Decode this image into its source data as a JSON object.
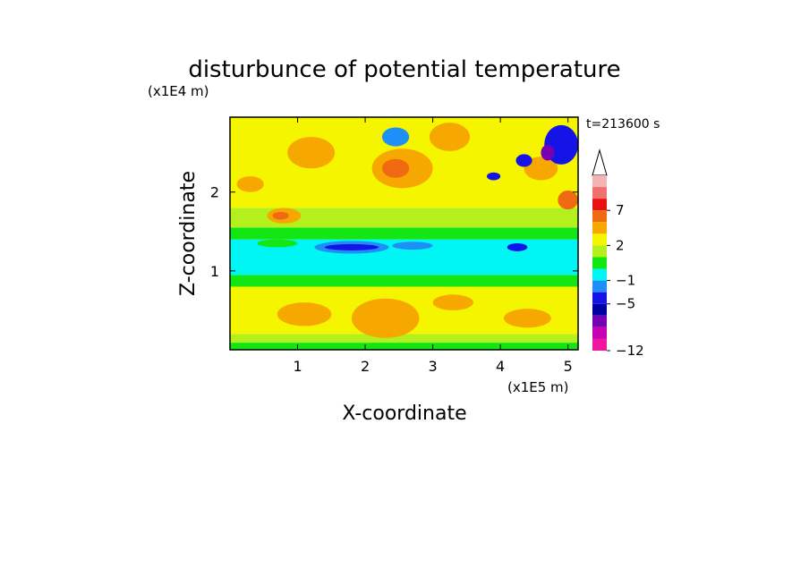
{
  "chart_data": {
    "type": "heatmap",
    "title": "disturbunce of potential temperature",
    "y_scale_label": "(x1E4 m)",
    "x_scale_label": "(x1E5 m)",
    "xlabel": "X-coordinate",
    "ylabel": "Z-coordinate",
    "time_label": "t=213600 s",
    "xlim": [
      0,
      5.15
    ],
    "ylim": [
      0,
      2.95
    ],
    "x_ticks": [
      1,
      2,
      3,
      4,
      5
    ],
    "y_ticks": [
      1,
      2
    ],
    "colorbar": {
      "labels": [
        "7",
        "2",
        "−1",
        "−5",
        "−12"
      ],
      "colors": [
        "#f5b4b4",
        "#f07070",
        "#e81010",
        "#f06a14",
        "#f7a800",
        "#f5f500",
        "#b4f01e",
        "#14e614",
        "#00f5f5",
        "#1e90f5",
        "#1414e8",
        "#0000a0",
        "#7800b4",
        "#c800b4",
        "#f014a0"
      ],
      "levels": [
        12,
        10,
        8.5,
        7,
        5,
        3.5,
        2,
        1,
        0,
        -1,
        -3,
        -5,
        -7,
        -9,
        -10.5,
        -12
      ]
    },
    "bands": [
      {
        "z_from": 0.0,
        "z_to": 0.09,
        "color": "#14e614"
      },
      {
        "z_from": 0.09,
        "z_to": 0.2,
        "color": "#b4f01e"
      },
      {
        "z_from": 0.2,
        "z_to": 0.8,
        "color": "#f5f500"
      },
      {
        "z_from": 0.8,
        "z_to": 0.95,
        "color": "#14e614"
      },
      {
        "z_from": 0.95,
        "z_to": 1.4,
        "color": "#00f5f5"
      },
      {
        "z_from": 1.4,
        "z_to": 1.55,
        "color": "#14e614"
      },
      {
        "z_from": 1.55,
        "z_to": 1.8,
        "color": "#b4f01e"
      },
      {
        "z_from": 1.8,
        "z_to": 2.95,
        "color": "#f5f500"
      }
    ],
    "blobs": [
      {
        "x": 2.55,
        "z": 2.3,
        "rx": 0.45,
        "rz": 0.25,
        "color": "#f7a800"
      },
      {
        "x": 2.45,
        "z": 2.3,
        "rx": 0.2,
        "rz": 0.12,
        "color": "#f06a14"
      },
      {
        "x": 1.2,
        "z": 2.5,
        "rx": 0.35,
        "rz": 0.2,
        "color": "#f7a800"
      },
      {
        "x": 0.8,
        "z": 1.7,
        "rx": 0.25,
        "rz": 0.1,
        "color": "#f7a800"
      },
      {
        "x": 0.75,
        "z": 1.7,
        "rx": 0.12,
        "rz": 0.05,
        "color": "#f06a14"
      },
      {
        "x": 0.3,
        "z": 2.1,
        "rx": 0.2,
        "rz": 0.1,
        "color": "#f7a800"
      },
      {
        "x": 3.25,
        "z": 2.7,
        "rx": 0.3,
        "rz": 0.18,
        "color": "#f7a800"
      },
      {
        "x": 4.6,
        "z": 2.3,
        "rx": 0.25,
        "rz": 0.15,
        "color": "#f7a800"
      },
      {
        "x": 5.0,
        "z": 1.9,
        "rx": 0.15,
        "rz": 0.12,
        "color": "#f06a14"
      },
      {
        "x": 1.8,
        "z": 1.3,
        "rx": 0.55,
        "rz": 0.08,
        "color": "#1e90f5"
      },
      {
        "x": 1.8,
        "z": 1.3,
        "rx": 0.4,
        "rz": 0.04,
        "color": "#1414e8"
      },
      {
        "x": 2.7,
        "z": 1.32,
        "rx": 0.3,
        "rz": 0.05,
        "color": "#1e90f5"
      },
      {
        "x": 4.25,
        "z": 1.3,
        "rx": 0.15,
        "rz": 0.05,
        "color": "#1414e8"
      },
      {
        "x": 0.7,
        "z": 1.35,
        "rx": 0.3,
        "rz": 0.05,
        "color": "#14e614"
      },
      {
        "x": 2.45,
        "z": 2.7,
        "rx": 0.2,
        "rz": 0.12,
        "color": "#1e90f5"
      },
      {
        "x": 4.35,
        "z": 2.4,
        "rx": 0.12,
        "rz": 0.08,
        "color": "#1414e8"
      },
      {
        "x": 4.9,
        "z": 2.6,
        "rx": 0.25,
        "rz": 0.25,
        "color": "#1414e8"
      },
      {
        "x": 4.7,
        "z": 2.5,
        "rx": 0.1,
        "rz": 0.1,
        "color": "#7800b4"
      },
      {
        "x": 3.9,
        "z": 2.2,
        "rx": 0.1,
        "rz": 0.05,
        "color": "#1414e8"
      },
      {
        "x": 2.3,
        "z": 0.4,
        "rx": 0.5,
        "rz": 0.25,
        "color": "#f7a800"
      },
      {
        "x": 1.1,
        "z": 0.45,
        "rx": 0.4,
        "rz": 0.15,
        "color": "#f7a800"
      },
      {
        "x": 4.4,
        "z": 0.4,
        "rx": 0.35,
        "rz": 0.12,
        "color": "#f7a800"
      },
      {
        "x": 3.3,
        "z": 0.6,
        "rx": 0.3,
        "rz": 0.1,
        "color": "#f7a800"
      }
    ]
  }
}
